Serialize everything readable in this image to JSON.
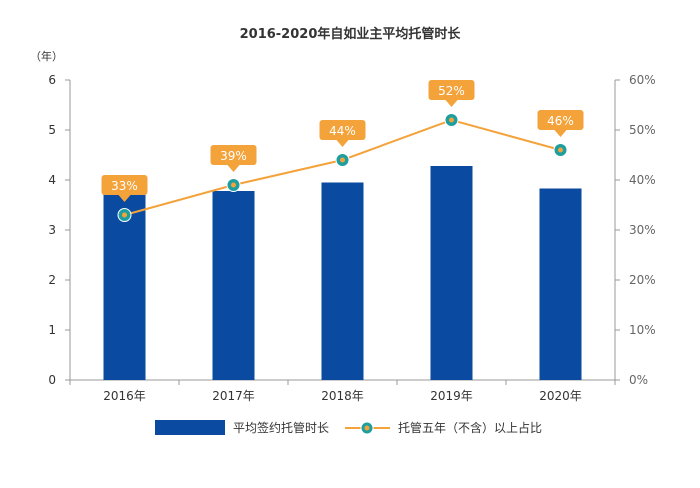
{
  "chart_data": {
    "type": "bar",
    "title": "2016-2020年自如业主平均托管时长",
    "y_unit_label": "（年）",
    "categories": [
      "2016年",
      "2017年",
      "2018年",
      "2019年",
      "2020年"
    ],
    "ylim": [
      0,
      6
    ],
    "y_ticks": [
      "0",
      "1",
      "2",
      "3",
      "4",
      "5",
      "6"
    ],
    "y2lim": [
      0,
      60
    ],
    "y2_ticks": [
      "0%",
      "10%",
      "20%",
      "30%",
      "40%",
      "50%",
      "60%"
    ],
    "series": [
      {
        "name": "平均签约托管时长",
        "type": "bar",
        "axis": "left",
        "color": "#0a4aa0",
        "values": [
          3.75,
          3.78,
          3.95,
          4.28,
          3.83
        ]
      },
      {
        "name": "托管五年（不含）以上占比",
        "type": "line",
        "axis": "right",
        "color": "#f4a23a",
        "marker_color": "#1f9ea0",
        "values": [
          33,
          39,
          44,
          52,
          46
        ],
        "data_labels": [
          "33%",
          "39%",
          "44%",
          "52%",
          "46%"
        ]
      }
    ],
    "legend_position": "bottom",
    "grid": false
  }
}
